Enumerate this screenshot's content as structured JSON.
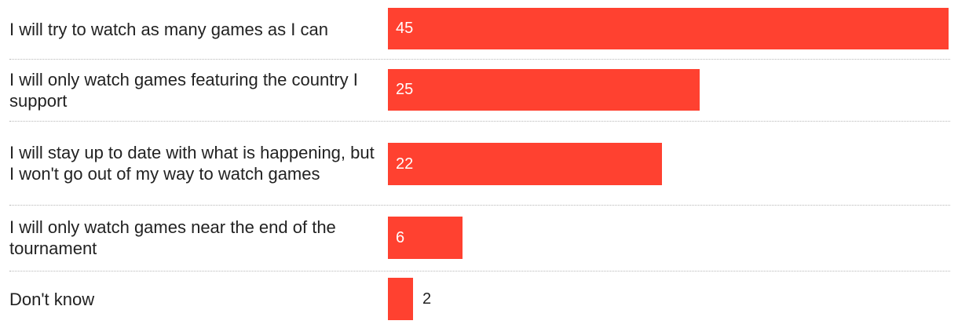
{
  "chart_data": {
    "type": "bar",
    "orientation": "horizontal",
    "categories": [
      "I will try to watch as many games as I can",
      "I will only watch games featuring the country I support",
      "I will stay up to date with what is happening, but I won't go out of my way to watch games",
      "I will only watch games near the end of the tournament",
      "Don't know"
    ],
    "values": [
      45,
      25,
      22,
      6,
      2
    ],
    "value_labels": [
      "45",
      "25",
      "22",
      "6",
      "2"
    ],
    "xlim": [
      0,
      45
    ],
    "grid": false,
    "bar_color": "#ff4130"
  }
}
